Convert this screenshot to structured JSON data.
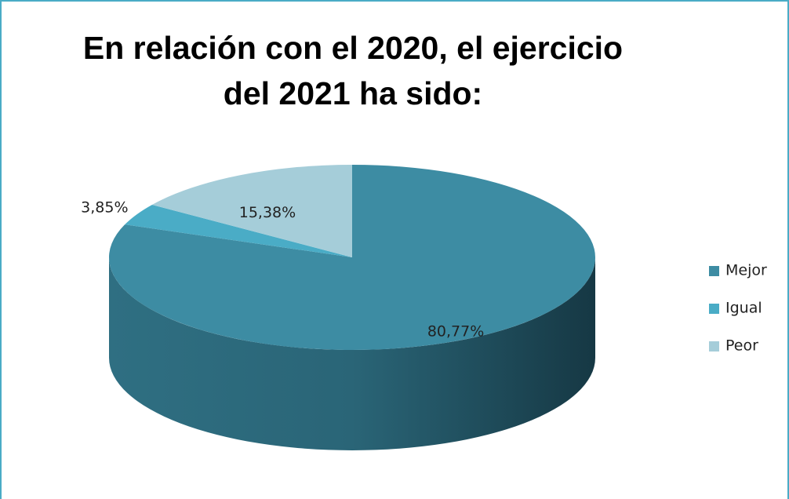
{
  "chart_data": {
    "type": "pie",
    "title": "En relación con el 2020, el ejercicio del 2021 ha sido:",
    "categories": [
      "Mejor",
      "Igual",
      "Peor"
    ],
    "values": [
      80.77,
      3.85,
      15.38
    ],
    "value_labels": [
      "80,77%",
      "3,85%",
      "15,38%"
    ],
    "colors": [
      "#3d8ca3",
      "#4aacc6",
      "#a5cdd9"
    ],
    "legend": "right"
  }
}
